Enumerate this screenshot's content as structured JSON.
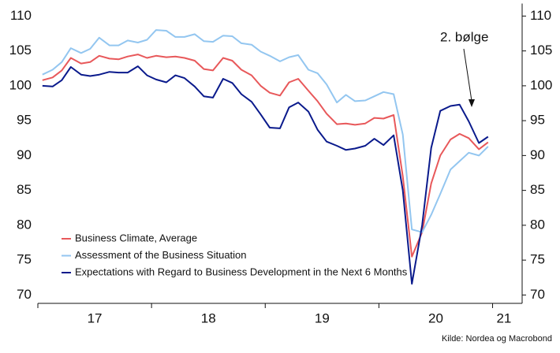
{
  "chart_data": {
    "type": "line",
    "annotation": "2. bølge",
    "source": "Kilde: Nordea og Macrobond",
    "x": [
      2017.04,
      2017.13,
      2017.21,
      2017.29,
      2017.38,
      2017.46,
      2017.54,
      2017.63,
      2017.71,
      2017.79,
      2017.88,
      2017.96,
      2018.04,
      2018.13,
      2018.21,
      2018.29,
      2018.38,
      2018.46,
      2018.54,
      2018.63,
      2018.71,
      2018.79,
      2018.88,
      2018.96,
      2019.04,
      2019.13,
      2019.21,
      2019.29,
      2019.38,
      2019.46,
      2019.54,
      2019.63,
      2019.71,
      2019.79,
      2019.88,
      2019.96,
      2020.04,
      2020.13,
      2020.21,
      2020.29,
      2020.38,
      2020.46,
      2020.54,
      2020.63,
      2020.71,
      2020.79,
      2020.88,
      2020.96
    ],
    "series": [
      {
        "name": "Business Climate, Average",
        "color": "#e8585a",
        "values": [
          100.8,
          101.2,
          102.2,
          104.0,
          103.2,
          103.4,
          104.3,
          103.9,
          103.8,
          104.2,
          104.5,
          104.0,
          104.3,
          104.1,
          104.2,
          104.0,
          103.6,
          102.4,
          102.2,
          104.0,
          103.6,
          102.3,
          101.5,
          100.0,
          99.0,
          98.6,
          100.5,
          101.0,
          99.3,
          97.8,
          96.0,
          94.5,
          94.6,
          94.4,
          94.6,
          95.4,
          95.3,
          95.8,
          87.0,
          75.5,
          79.0,
          86.0,
          90.0,
          92.3,
          93.1,
          92.5,
          90.9,
          91.9
        ]
      },
      {
        "name": "Assessment of the Business Situation",
        "color": "#93c6f0",
        "values": [
          101.6,
          102.3,
          103.4,
          105.4,
          104.7,
          105.3,
          106.9,
          105.8,
          105.8,
          106.5,
          106.2,
          106.6,
          108.0,
          107.9,
          107.0,
          107.0,
          107.4,
          106.4,
          106.3,
          107.2,
          107.1,
          106.1,
          105.9,
          104.9,
          104.3,
          103.5,
          104.1,
          104.4,
          102.3,
          101.8,
          100.2,
          97.6,
          98.7,
          97.8,
          97.9,
          98.5,
          99.1,
          98.8,
          93.0,
          79.4,
          79.0,
          81.5,
          84.5,
          88.0,
          89.2,
          90.4,
          90.0,
          91.3
        ]
      },
      {
        "name": "Expectations with Regard to Business Development in the Next 6 Months",
        "color": "#0a1a8c",
        "values": [
          100.0,
          99.9,
          100.8,
          102.7,
          101.6,
          101.4,
          101.6,
          102.0,
          101.9,
          101.9,
          102.8,
          101.5,
          100.9,
          100.5,
          101.5,
          101.1,
          99.9,
          98.5,
          98.3,
          101.0,
          100.4,
          98.8,
          97.7,
          95.9,
          94.0,
          93.9,
          96.9,
          97.6,
          96.3,
          93.7,
          92.0,
          91.4,
          90.8,
          91.0,
          91.4,
          92.4,
          91.5,
          92.9,
          85.0,
          71.6,
          80.0,
          91.1,
          96.4,
          97.1,
          97.3,
          94.9,
          91.8,
          92.7
        ]
      }
    ],
    "xlim": [
      2017,
      2021.26
    ],
    "xticks": [
      {
        "value": 2017.5,
        "label": "17"
      },
      {
        "value": 2018.5,
        "label": "18"
      },
      {
        "value": 2019.5,
        "label": "19"
      },
      {
        "value": 2020.5,
        "label": "20"
      },
      {
        "value": 2021.1,
        "label": "21"
      }
    ],
    "xticks_minor": [
      2017,
      2018,
      2019,
      2020,
      2021
    ],
    "ylim": [
      68.8,
      111.8
    ],
    "yticks": [
      70,
      75,
      80,
      85,
      90,
      95,
      100,
      105,
      110
    ],
    "y2lim": [
      68.8,
      111.8
    ],
    "y2ticks": [
      70,
      75,
      80,
      85,
      90,
      95,
      100,
      105,
      110
    ],
    "grid": false,
    "legend": "lower left"
  }
}
